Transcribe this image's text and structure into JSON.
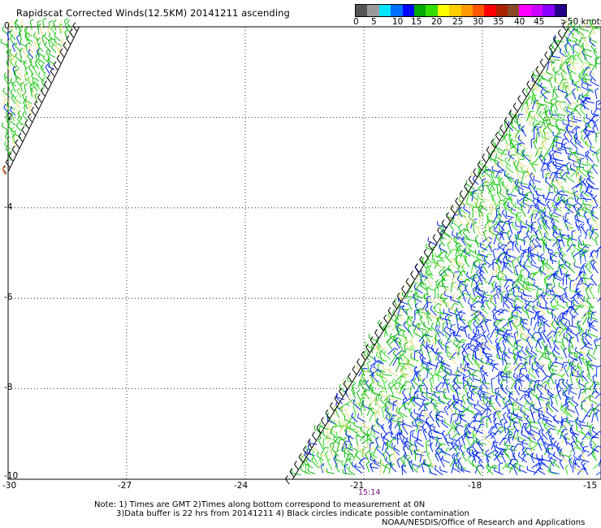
{
  "title": "Rapidscat Corrected Winds(12.5KM) 20141211 ascending",
  "legend": {
    "labels": [
      "0",
      "5",
      "10",
      "15",
      "20",
      "25",
      "30",
      "35",
      "40",
      "45",
      ">50 knots"
    ],
    "colors": [
      "#555555",
      "#9a9a9a",
      "#00e5ff",
      "#0070ff",
      "#0000ff",
      "#00aa00",
      "#33dd00",
      "#ffff00",
      "#ffcc00",
      "#ff9900",
      "#ff5500",
      "#ff0000",
      "#aa2200",
      "#8a4a2a",
      "#ff00ff",
      "#cc00ff",
      "#8800ff",
      "#220088"
    ]
  },
  "axes": {
    "x_ticks": [
      "-30",
      "-27",
      "-24",
      "-21",
      "-18",
      "-15"
    ],
    "y_ticks": [
      "0",
      "-2",
      "-4",
      "-6",
      "-8",
      "-10"
    ],
    "x_range": [
      -30,
      -15
    ],
    "y_range": [
      0,
      -10
    ]
  },
  "pass_time": "15:14",
  "notes": {
    "line1": "Note: 1) Times are GMT 2)Times along bottom correspond to measurement at 0N",
    "line2": "3)Data buffer is 22 hrs from 20141211 4) Black circles indicate possible contamination",
    "credit": "NOAA/NESDIS/Office of Research and Applications"
  },
  "swaths": {
    "left": {
      "lon_lat_edge": [
        [
          -30,
          -3.2
        ],
        [
          -28.2,
          0
        ]
      ],
      "dominant": "green/yellow"
    },
    "right": {
      "lon_lat_edge": [
        [
          -22.8,
          -10
        ],
        [
          -15.8,
          0
        ]
      ],
      "dominant": "blue/green"
    }
  }
}
